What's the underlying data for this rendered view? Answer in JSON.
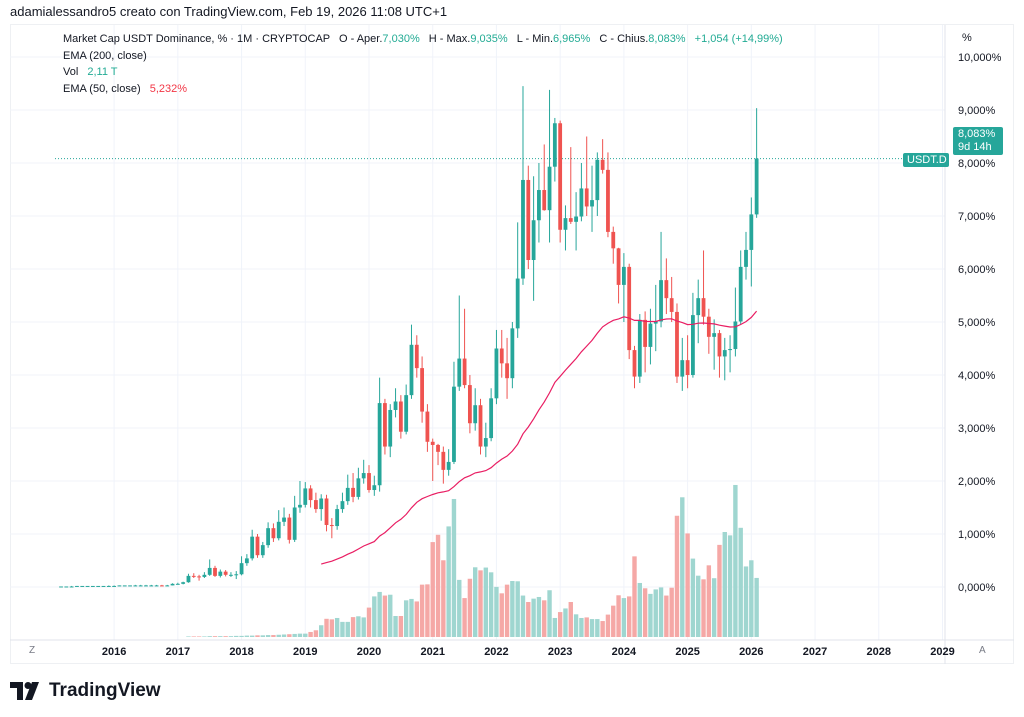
{
  "credit": "adamialessandro5 creato con TradingView.com, Feb 19, 2026 11:08 UTC+1",
  "legend": {
    "title": "Market Cap USDT Dominance, % · 1M · CRYPTOCAP",
    "open_label": "O - Aper.",
    "open": "7,030%",
    "high_label": "H - Max.",
    "high": "9,035%",
    "low_label": "L - Min.",
    "low": "6,965%",
    "close_label": "C - Chius.",
    "close": "8,083%",
    "change": "+1,054 (+14,99%)",
    "ema200": "EMA (200, close)",
    "vol_label": "Vol",
    "vol": "2,11 T",
    "ema50_label": "EMA (50, close)",
    "ema50": "5,232%"
  },
  "price_tag": {
    "symbol": "USDT.D",
    "value": "8,083%",
    "countdown": "9d 14h"
  },
  "axis_unit": "%",
  "buttons": {
    "z": "Z",
    "a": "A"
  },
  "brand": "TradingView",
  "colors": {
    "up": "#26a69a",
    "down": "#ef5350",
    "up_vol": "#9fd6d0",
    "down_vol": "#f5a8a6",
    "ema50": "#e91e63",
    "accent": "#22ab94"
  },
  "chart_data": {
    "type": "candlestick",
    "interval": "1M",
    "y_unit": "%",
    "ylim": [
      -0.9,
      10.2
    ],
    "y_ticks": [
      "10,000%",
      "9,000%",
      "8,000%",
      "7,000%",
      "6,000%",
      "5,000%",
      "4,000%",
      "3,000%",
      "2,000%",
      "1,000%",
      "0,000%"
    ],
    "y_tick_values": [
      10,
      9,
      8,
      7,
      6,
      5,
      4,
      3,
      2,
      1,
      0
    ],
    "x_ticks": [
      "2016",
      "2017",
      "2018",
      "2019",
      "2020",
      "2021",
      "2022",
      "2023",
      "2024",
      "2025",
      "2026",
      "2027",
      "2028",
      "2029"
    ],
    "volume_unit": "T",
    "overlays": [
      "EMA (50, close)"
    ],
    "grid": true,
    "columns": [
      "month",
      "open",
      "high",
      "low",
      "close",
      "volume"
    ],
    "candles": [
      [
        "2015-03",
        0.01,
        0.01,
        0.01,
        0.01,
        0.0
      ],
      [
        "2015-04",
        0.01,
        0.01,
        0.01,
        0.01,
        0.0
      ],
      [
        "2015-05",
        0.01,
        0.02,
        0.01,
        0.01,
        0.0
      ],
      [
        "2015-06",
        0.01,
        0.02,
        0.01,
        0.02,
        0.0
      ],
      [
        "2015-07",
        0.02,
        0.02,
        0.02,
        0.02,
        0.0
      ],
      [
        "2015-08",
        0.02,
        0.02,
        0.02,
        0.02,
        0.0
      ],
      [
        "2015-09",
        0.02,
        0.02,
        0.02,
        0.02,
        0.0
      ],
      [
        "2015-10",
        0.02,
        0.02,
        0.02,
        0.02,
        0.0
      ],
      [
        "2015-11",
        0.02,
        0.02,
        0.02,
        0.02,
        0.0
      ],
      [
        "2015-12",
        0.02,
        0.03,
        0.02,
        0.02,
        0.0
      ],
      [
        "2016-01",
        0.02,
        0.03,
        0.02,
        0.02,
        0.0
      ],
      [
        "2016-02",
        0.02,
        0.03,
        0.02,
        0.03,
        0.0
      ],
      [
        "2016-03",
        0.03,
        0.03,
        0.03,
        0.03,
        0.0
      ],
      [
        "2016-04",
        0.03,
        0.03,
        0.03,
        0.03,
        0.0
      ],
      [
        "2016-05",
        0.03,
        0.04,
        0.03,
        0.03,
        0.0
      ],
      [
        "2016-06",
        0.03,
        0.04,
        0.03,
        0.03,
        0.01
      ],
      [
        "2016-07",
        0.03,
        0.04,
        0.03,
        0.03,
        0.01
      ],
      [
        "2016-08",
        0.03,
        0.04,
        0.02,
        0.03,
        0.01
      ],
      [
        "2016-09",
        0.03,
        0.04,
        0.02,
        0.03,
        0.01
      ],
      [
        "2016-10",
        0.03,
        0.04,
        0.02,
        0.02,
        0.01
      ],
      [
        "2016-11",
        0.02,
        0.04,
        0.02,
        0.03,
        0.01
      ],
      [
        "2016-12",
        0.03,
        0.07,
        0.03,
        0.06,
        0.01
      ],
      [
        "2017-01",
        0.06,
        0.08,
        0.05,
        0.06,
        0.01
      ],
      [
        "2017-02",
        0.06,
        0.1,
        0.05,
        0.09,
        0.01
      ],
      [
        "2017-03",
        0.09,
        0.25,
        0.08,
        0.21,
        0.02
      ],
      [
        "2017-04",
        0.21,
        0.26,
        0.17,
        0.2,
        0.02
      ],
      [
        "2017-05",
        0.2,
        0.23,
        0.12,
        0.19,
        0.02
      ],
      [
        "2017-06",
        0.19,
        0.28,
        0.17,
        0.23,
        0.02
      ],
      [
        "2017-07",
        0.23,
        0.52,
        0.21,
        0.36,
        0.03
      ],
      [
        "2017-08",
        0.36,
        0.4,
        0.19,
        0.21,
        0.03
      ],
      [
        "2017-09",
        0.21,
        0.33,
        0.18,
        0.29,
        0.03
      ],
      [
        "2017-10",
        0.29,
        0.32,
        0.2,
        0.23,
        0.03
      ],
      [
        "2017-11",
        0.23,
        0.28,
        0.19,
        0.23,
        0.03
      ],
      [
        "2017-12",
        0.23,
        0.3,
        0.15,
        0.24,
        0.04
      ],
      [
        "2018-01",
        0.24,
        0.58,
        0.22,
        0.45,
        0.04
      ],
      [
        "2018-02",
        0.45,
        0.62,
        0.4,
        0.54,
        0.05
      ],
      [
        "2018-03",
        0.54,
        1.08,
        0.5,
        0.95,
        0.05
      ],
      [
        "2018-04",
        0.95,
        1.0,
        0.55,
        0.6,
        0.06
      ],
      [
        "2018-05",
        0.6,
        0.85,
        0.55,
        0.79,
        0.06
      ],
      [
        "2018-06",
        0.79,
        1.22,
        0.74,
        1.11,
        0.07
      ],
      [
        "2018-07",
        1.11,
        1.2,
        0.85,
        0.92,
        0.07
      ],
      [
        "2018-08",
        0.92,
        1.45,
        0.88,
        1.23,
        0.08
      ],
      [
        "2018-09",
        1.23,
        1.5,
        1.15,
        1.31,
        0.09
      ],
      [
        "2018-10",
        1.31,
        1.38,
        0.82,
        0.89,
        0.1
      ],
      [
        "2018-11",
        0.89,
        1.72,
        0.85,
        1.5,
        0.11
      ],
      [
        "2018-12",
        1.5,
        2.0,
        1.4,
        1.55,
        0.12
      ],
      [
        "2019-01",
        1.55,
        1.98,
        1.5,
        1.86,
        0.12
      ],
      [
        "2019-02",
        1.86,
        1.92,
        1.5,
        1.64,
        0.18
      ],
      [
        "2019-03",
        1.64,
        1.78,
        1.4,
        1.47,
        0.24
      ],
      [
        "2019-04",
        1.47,
        1.75,
        1.25,
        1.67,
        0.42
      ],
      [
        "2019-05",
        1.67,
        1.74,
        1.05,
        1.17,
        0.65
      ],
      [
        "2019-06",
        1.17,
        1.3,
        0.92,
        1.15,
        0.63
      ],
      [
        "2019-07",
        1.15,
        1.55,
        1.08,
        1.47,
        0.68
      ],
      [
        "2019-08",
        1.47,
        1.78,
        1.4,
        1.62,
        0.54
      ],
      [
        "2019-09",
        1.62,
        2.12,
        1.55,
        1.87,
        0.54
      ],
      [
        "2019-10",
        1.87,
        2.15,
        1.6,
        1.7,
        0.71
      ],
      [
        "2019-11",
        1.7,
        2.25,
        1.65,
        2.05,
        0.74
      ],
      [
        "2019-12",
        2.05,
        2.4,
        1.95,
        2.15,
        0.7
      ],
      [
        "2020-01",
        2.15,
        2.3,
        1.78,
        1.83,
        1.05
      ],
      [
        "2020-02",
        1.83,
        2.1,
        1.72,
        1.92,
        1.45
      ],
      [
        "2020-03",
        1.92,
        3.95,
        1.8,
        3.47,
        1.61
      ],
      [
        "2020-04",
        3.47,
        3.55,
        2.5,
        2.65,
        1.48
      ],
      [
        "2020-05",
        2.65,
        3.45,
        2.45,
        3.34,
        1.51
      ],
      [
        "2020-06",
        3.34,
        3.75,
        3.2,
        3.5,
        0.75
      ],
      [
        "2020-07",
        3.5,
        3.62,
        2.8,
        2.93,
        0.75
      ],
      [
        "2020-08",
        2.93,
        3.82,
        2.88,
        3.62,
        1.31
      ],
      [
        "2020-09",
        3.62,
        4.95,
        3.55,
        4.57,
        1.36
      ],
      [
        "2020-10",
        4.57,
        4.75,
        3.95,
        4.13,
        1.27
      ],
      [
        "2020-11",
        4.13,
        4.35,
        3.1,
        3.31,
        1.87
      ],
      [
        "2020-12",
        3.31,
        3.45,
        2.55,
        2.74,
        1.88
      ],
      [
        "2021-01",
        2.74,
        2.8,
        2.0,
        2.68,
        3.39
      ],
      [
        "2021-02",
        2.68,
        2.7,
        2.3,
        2.55,
        3.65
      ],
      [
        "2021-03",
        2.55,
        2.65,
        1.95,
        2.21,
        2.74
      ],
      [
        "2021-04",
        2.21,
        2.6,
        2.1,
        2.36,
        3.95
      ],
      [
        "2021-05",
        2.36,
        4.25,
        2.32,
        3.78,
        4.93
      ],
      [
        "2021-06",
        3.78,
        5.5,
        3.7,
        4.31,
        2.04
      ],
      [
        "2021-07",
        4.31,
        5.25,
        3.75,
        3.81,
        1.39
      ],
      [
        "2021-08",
        3.81,
        4.0,
        2.9,
        3.09,
        2.08
      ],
      [
        "2021-09",
        3.09,
        3.75,
        2.95,
        3.43,
        2.49
      ],
      [
        "2021-10",
        3.43,
        3.55,
        2.5,
        2.65,
        2.38
      ],
      [
        "2021-11",
        2.65,
        3.1,
        2.45,
        2.81,
        2.48
      ],
      [
        "2021-12",
        2.81,
        3.75,
        2.75,
        3.56,
        2.31
      ],
      [
        "2022-01",
        3.56,
        4.85,
        3.45,
        4.5,
        1.79
      ],
      [
        "2022-02",
        4.5,
        4.85,
        3.95,
        4.22,
        1.56
      ],
      [
        "2022-03",
        4.22,
        4.7,
        3.55,
        3.94,
        1.87
      ],
      [
        "2022-04",
        3.94,
        5.0,
        3.75,
        4.88,
        2.0
      ],
      [
        "2022-05",
        4.88,
        6.88,
        4.7,
        5.82,
        1.99
      ],
      [
        "2022-06",
        5.82,
        9.45,
        5.7,
        7.68,
        1.48
      ],
      [
        "2022-07",
        7.68,
        7.95,
        6.0,
        6.17,
        1.25
      ],
      [
        "2022-08",
        6.17,
        7.75,
        5.4,
        6.92,
        1.37
      ],
      [
        "2022-09",
        6.92,
        8.0,
        6.5,
        7.49,
        1.43
      ],
      [
        "2022-10",
        7.49,
        8.35,
        7.1,
        7.11,
        1.31
      ],
      [
        "2022-11",
        7.11,
        9.38,
        6.5,
        7.93,
        1.67
      ],
      [
        "2022-12",
        7.93,
        8.85,
        7.65,
        8.75,
        0.68
      ],
      [
        "2023-01",
        8.75,
        8.8,
        6.5,
        6.74,
        0.89
      ],
      [
        "2023-02",
        6.74,
        7.2,
        6.35,
        6.96,
        1.02
      ],
      [
        "2023-03",
        6.96,
        8.3,
        6.85,
        6.89,
        1.25
      ],
      [
        "2023-04",
        6.89,
        7.45,
        6.35,
        6.99,
        0.81
      ],
      [
        "2023-05",
        6.99,
        8.0,
        6.9,
        7.52,
        0.68
      ],
      [
        "2023-06",
        7.52,
        8.5,
        7.0,
        7.18,
        0.7
      ],
      [
        "2023-07",
        7.18,
        7.95,
        6.7,
        7.3,
        0.64
      ],
      [
        "2023-08",
        7.3,
        8.2,
        7.0,
        8.06,
        0.64
      ],
      [
        "2023-09",
        8.06,
        8.45,
        7.8,
        7.87,
        0.57
      ],
      [
        "2023-10",
        7.87,
        8.2,
        6.6,
        6.7,
        0.8
      ],
      [
        "2023-11",
        6.7,
        6.8,
        6.1,
        6.39,
        1.12
      ],
      [
        "2023-12",
        6.39,
        6.4,
        5.35,
        5.7,
        1.49
      ],
      [
        "2024-01",
        5.7,
        6.3,
        5.0,
        6.04,
        1.39
      ],
      [
        "2024-02",
        6.04,
        6.1,
        4.3,
        4.47,
        1.45
      ],
      [
        "2024-03",
        4.47,
        4.55,
        3.75,
        3.97,
        2.88
      ],
      [
        "2024-04",
        3.97,
        5.15,
        3.85,
        5.04,
        1.93
      ],
      [
        "2024-05",
        5.04,
        5.2,
        4.05,
        4.53,
        1.74
      ],
      [
        "2024-06",
        4.53,
        5.25,
        4.2,
        4.97,
        1.54
      ],
      [
        "2024-07",
        4.97,
        5.7,
        4.45,
        5.01,
        1.7
      ],
      [
        "2024-08",
        5.01,
        6.7,
        4.9,
        5.79,
        1.77
      ],
      [
        "2024-09",
        5.79,
        6.2,
        5.15,
        5.45,
        1.48
      ],
      [
        "2024-10",
        5.45,
        5.85,
        5.0,
        5.19,
        1.76
      ],
      [
        "2024-11",
        5.19,
        5.35,
        3.85,
        3.97,
        4.33
      ],
      [
        "2024-12",
        3.97,
        4.7,
        3.7,
        4.28,
        4.99
      ],
      [
        "2025-01",
        4.28,
        4.75,
        3.75,
        4.0,
        3.7
      ],
      [
        "2025-02",
        4.0,
        5.55,
        3.95,
        5.13,
        2.8
      ],
      [
        "2025-03",
        5.13,
        5.8,
        4.6,
        5.45,
        2.19
      ],
      [
        "2025-04",
        5.45,
        6.35,
        4.95,
        5.1,
        2.06
      ],
      [
        "2025-05",
        5.1,
        5.25,
        4.4,
        4.72,
        2.56
      ],
      [
        "2025-06",
        4.72,
        5.05,
        4.1,
        4.79,
        2.1
      ],
      [
        "2025-07",
        4.79,
        4.85,
        3.95,
        4.35,
        3.29
      ],
      [
        "2025-08",
        4.35,
        4.7,
        3.9,
        4.47,
        3.75
      ],
      [
        "2025-09",
        4.47,
        4.75,
        4.05,
        4.49,
        3.63
      ],
      [
        "2025-10",
        4.49,
        5.65,
        4.35,
        5.01,
        5.43
      ],
      [
        "2025-11",
        5.01,
        6.35,
        4.95,
        6.04,
        3.9
      ],
      [
        "2025-12",
        6.04,
        6.7,
        5.8,
        6.36,
        2.52
      ],
      [
        "2026-01",
        6.36,
        7.35,
        5.67,
        7.03,
        2.74
      ],
      [
        "2026-02",
        7.03,
        9.035,
        6.965,
        8.083,
        2.11
      ]
    ]
  }
}
